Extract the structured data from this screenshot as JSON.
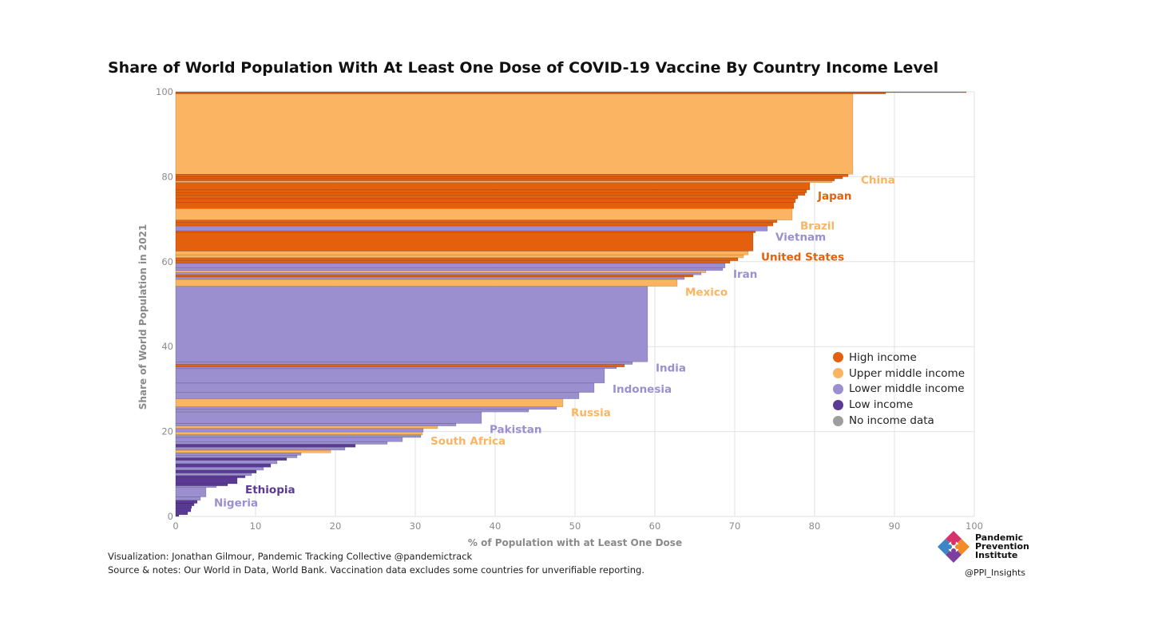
{
  "colors": {
    "high": "#e4600c",
    "upper_middle": "#fbb462",
    "lower_middle": "#9b8fd0",
    "low": "#5b3a96",
    "none": "#9e9e9e",
    "grid": "#e2e2e2",
    "axis_text": "#8a8a8a"
  },
  "legend": [
    {
      "label": "High income",
      "color_key": "high"
    },
    {
      "label": "Upper middle income",
      "color_key": "upper_middle"
    },
    {
      "label": "Lower middle income",
      "color_key": "lower_middle"
    },
    {
      "label": "Low income",
      "color_key": "low"
    },
    {
      "label": "No income data",
      "color_key": "none"
    }
  ],
  "credits": {
    "line1": "Visualization: Jonathan Gilmour, Pandemic Tracking Collective @pandemictrack",
    "line2": "Source & notes: Our World in Data, World Bank. Vaccination data excludes some countries for unverifiable reporting."
  },
  "logo": {
    "line1": "Pandemic",
    "line2": "Prevention",
    "line3": "Institute",
    "handle": "@PPI_Insights"
  },
  "chart_data": {
    "type": "bar",
    "orientation": "horizontal-stacked-cumulative",
    "title": "Share of World Population With At Least One Dose of COVID-19 Vaccine By Country Income Level",
    "xlabel": "% of Population with at Least One Dose",
    "ylabel": "Share of World Population in 2021",
    "xlim": [
      0,
      100
    ],
    "ylim": [
      0,
      100
    ],
    "x_ticks": [
      0,
      10,
      20,
      30,
      40,
      50,
      60,
      70,
      80,
      90,
      100
    ],
    "y_ticks": [
      0,
      20,
      40,
      60,
      80,
      100
    ],
    "grid": true,
    "legend_position": "right",
    "bars": [
      {
        "y0": 99.8,
        "y1": 100,
        "value": 99,
        "income": "high"
      },
      {
        "y0": 99.5,
        "y1": 99.8,
        "value": 88.9,
        "income": "high"
      },
      {
        "y0": 80.6,
        "y1": 99.5,
        "value": 84.8,
        "income": "upper_middle",
        "label": "China"
      },
      {
        "y0": 80.0,
        "y1": 80.6,
        "value": 84.2,
        "income": "high"
      },
      {
        "y0": 79.5,
        "y1": 80.0,
        "value": 83.5,
        "income": "high"
      },
      {
        "y0": 79.0,
        "y1": 79.5,
        "value": 82.5,
        "income": "high"
      },
      {
        "y0": 78.6,
        "y1": 79.0,
        "value": 82.2,
        "income": "upper_middle"
      },
      {
        "y0": 76.9,
        "y1": 78.6,
        "value": 79.4,
        "income": "high",
        "label": "Japan"
      },
      {
        "y0": 76.2,
        "y1": 76.9,
        "value": 79.0,
        "income": "high"
      },
      {
        "y0": 75.6,
        "y1": 76.2,
        "value": 78.8,
        "income": "high"
      },
      {
        "y0": 74.8,
        "y1": 75.6,
        "value": 77.9,
        "income": "high"
      },
      {
        "y0": 73.9,
        "y1": 74.8,
        "value": 77.6,
        "income": "high"
      },
      {
        "y0": 72.5,
        "y1": 73.9,
        "value": 77.4,
        "income": "high"
      },
      {
        "y0": 69.8,
        "y1": 72.5,
        "value": 77.2,
        "income": "upper_middle",
        "label": "Brazil"
      },
      {
        "y0": 69.2,
        "y1": 69.8,
        "value": 75.3,
        "income": "high"
      },
      {
        "y0": 68.4,
        "y1": 69.2,
        "value": 74.8,
        "income": "high"
      },
      {
        "y0": 67.2,
        "y1": 68.4,
        "value": 74.1,
        "income": "lower_middle",
        "label": "Vietnam"
      },
      {
        "y0": 66.8,
        "y1": 67.2,
        "value": 72.6,
        "income": "high"
      },
      {
        "y0": 62.5,
        "y1": 66.8,
        "value": 72.3,
        "income": "high",
        "label": "United States"
      },
      {
        "y0": 61.6,
        "y1": 62.5,
        "value": 71.7,
        "income": "upper_middle"
      },
      {
        "y0": 60.9,
        "y1": 61.6,
        "value": 71.1,
        "income": "upper_middle"
      },
      {
        "y0": 60.2,
        "y1": 60.9,
        "value": 70.4,
        "income": "high"
      },
      {
        "y0": 59.6,
        "y1": 60.2,
        "value": 69.4,
        "income": "high"
      },
      {
        "y0": 58.5,
        "y1": 59.6,
        "value": 68.8,
        "income": "lower_middle",
        "label": "Iran"
      },
      {
        "y0": 57.9,
        "y1": 58.5,
        "value": 68.5,
        "income": "lower_middle"
      },
      {
        "y0": 57.4,
        "y1": 57.9,
        "value": 66.4,
        "income": "upper_middle"
      },
      {
        "y0": 56.9,
        "y1": 57.4,
        "value": 65.8,
        "income": "lower_middle"
      },
      {
        "y0": 56.4,
        "y1": 56.9,
        "value": 64.8,
        "income": "high"
      },
      {
        "y0": 55.8,
        "y1": 56.4,
        "value": 63.7,
        "income": "lower_middle"
      },
      {
        "y0": 54.2,
        "y1": 55.8,
        "value": 62.8,
        "income": "upper_middle",
        "label": "Mexico"
      },
      {
        "y0": 36.4,
        "y1": 54.2,
        "value": 59.1,
        "income": "lower_middle",
        "label": "India"
      },
      {
        "y0": 35.8,
        "y1": 36.4,
        "value": 57.2,
        "income": "lower_middle"
      },
      {
        "y0": 35.2,
        "y1": 35.8,
        "value": 56.2,
        "income": "high"
      },
      {
        "y0": 34.8,
        "y1": 35.2,
        "value": 55.2,
        "income": "lower_middle"
      },
      {
        "y0": 31.4,
        "y1": 34.8,
        "value": 53.7,
        "income": "lower_middle",
        "label": "Indonesia"
      },
      {
        "y0": 29.2,
        "y1": 31.4,
        "value": 52.4,
        "income": "lower_middle"
      },
      {
        "y0": 27.7,
        "y1": 29.2,
        "value": 50.5,
        "income": "lower_middle"
      },
      {
        "y0": 25.8,
        "y1": 27.7,
        "value": 48.5,
        "income": "upper_middle",
        "label": "Russia"
      },
      {
        "y0": 25.2,
        "y1": 25.8,
        "value": 47.7,
        "income": "lower_middle"
      },
      {
        "y0": 24.6,
        "y1": 25.2,
        "value": 44.2,
        "income": "lower_middle"
      },
      {
        "y0": 21.9,
        "y1": 24.6,
        "value": 38.3,
        "income": "lower_middle",
        "label": "Pakistan"
      },
      {
        "y0": 21.3,
        "y1": 21.9,
        "value": 35.1,
        "income": "lower_middle"
      },
      {
        "y0": 20.7,
        "y1": 21.3,
        "value": 32.8,
        "income": "upper_middle"
      },
      {
        "y0": 19.9,
        "y1": 20.7,
        "value": 31.0,
        "income": "lower_middle"
      },
      {
        "y0": 19.2,
        "y1": 19.9,
        "value": 30.9,
        "income": "upper_middle",
        "label": "South Africa"
      },
      {
        "y0": 18.6,
        "y1": 19.2,
        "value": 30.7,
        "income": "lower_middle"
      },
      {
        "y0": 17.6,
        "y1": 18.6,
        "value": 28.4,
        "income": "lower_middle"
      },
      {
        "y0": 17.0,
        "y1": 17.6,
        "value": 26.5,
        "income": "lower_middle"
      },
      {
        "y0": 16.3,
        "y1": 17.0,
        "value": 22.5,
        "income": "low"
      },
      {
        "y0": 15.6,
        "y1": 16.3,
        "value": 21.2,
        "income": "lower_middle"
      },
      {
        "y0": 15.0,
        "y1": 15.6,
        "value": 19.4,
        "income": "upper_middle"
      },
      {
        "y0": 14.4,
        "y1": 15.0,
        "value": 15.7,
        "income": "lower_middle"
      },
      {
        "y0": 13.8,
        "y1": 14.4,
        "value": 15.2,
        "income": "lower_middle"
      },
      {
        "y0": 13.2,
        "y1": 13.8,
        "value": 13.9,
        "income": "low"
      },
      {
        "y0": 12.4,
        "y1": 13.2,
        "value": 12.7,
        "income": "lower_middle"
      },
      {
        "y0": 11.6,
        "y1": 12.4,
        "value": 11.9,
        "income": "low"
      },
      {
        "y0": 10.9,
        "y1": 11.6,
        "value": 11.0,
        "income": "lower_middle"
      },
      {
        "y0": 10.2,
        "y1": 10.9,
        "value": 10.1,
        "income": "low"
      },
      {
        "y0": 9.6,
        "y1": 10.2,
        "value": 9.5,
        "income": "lower_middle"
      },
      {
        "y0": 9.1,
        "y1": 9.6,
        "value": 8.7,
        "income": "low"
      },
      {
        "y0": 7.7,
        "y1": 9.1,
        "value": 7.7,
        "income": "low",
        "label": "Ethiopia"
      },
      {
        "y0": 7.2,
        "y1": 7.7,
        "value": 6.5,
        "income": "low"
      },
      {
        "y0": 6.8,
        "y1": 7.2,
        "value": 5.1,
        "income": "lower_middle"
      },
      {
        "y0": 4.6,
        "y1": 6.8,
        "value": 3.8,
        "income": "lower_middle",
        "label": "Nigeria"
      },
      {
        "y0": 3.8,
        "y1": 4.6,
        "value": 3.1,
        "income": "lower_middle"
      },
      {
        "y0": 3.1,
        "y1": 3.8,
        "value": 2.7,
        "income": "low"
      },
      {
        "y0": 2.5,
        "y1": 3.1,
        "value": 2.3,
        "income": "low"
      },
      {
        "y0": 1.9,
        "y1": 2.5,
        "value": 2.0,
        "income": "low"
      },
      {
        "y0": 1.1,
        "y1": 1.9,
        "value": 1.9,
        "income": "low"
      },
      {
        "y0": 0.4,
        "y1": 1.1,
        "value": 1.5,
        "income": "low"
      },
      {
        "y0": 0.0,
        "y1": 0.4,
        "value": 0.4,
        "income": "low"
      }
    ]
  }
}
